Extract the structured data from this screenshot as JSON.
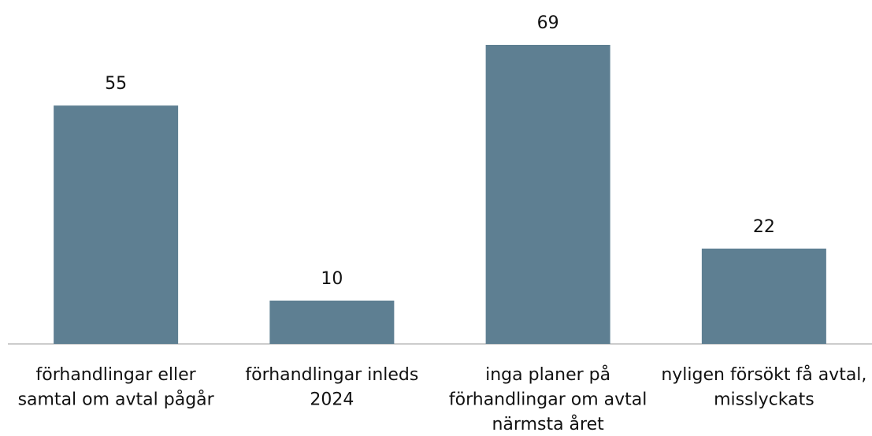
{
  "chart_data": {
    "type": "bar",
    "categories": [
      "förhandlingar eller samtal om avtal pågår",
      "förhandlingar inleds 2024",
      "inga planer på förhandlingar om avtal närmsta året",
      "nyligen försökt få avtal, misslyckats"
    ],
    "values": [
      55,
      10,
      69,
      22
    ],
    "color": "#5e7f92"
  }
}
